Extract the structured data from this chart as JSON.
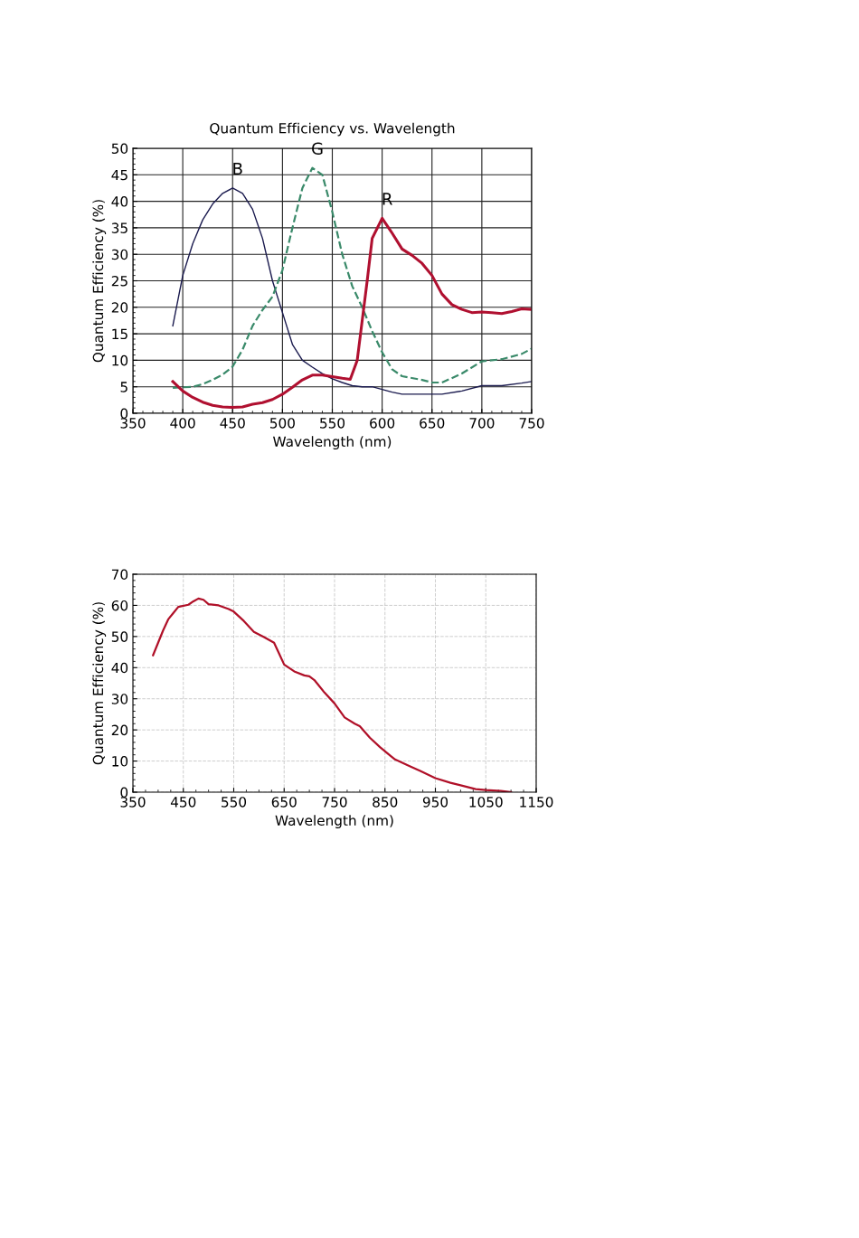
{
  "chart_data": [
    {
      "type": "line",
      "title": "Quantum Efficiency vs. Wavelength",
      "xlabel": "Wavelength (nm)",
      "ylabel": "Quantum Efficiency (%)",
      "xlim": [
        350,
        750
      ],
      "xticks": [
        350,
        400,
        450,
        500,
        550,
        600,
        650,
        700,
        750
      ],
      "ylim": [
        0,
        50
      ],
      "yticks": [
        0,
        5,
        10,
        15,
        20,
        25,
        30,
        35,
        40,
        45,
        50
      ],
      "grid": true,
      "legend": false,
      "series": [
        {
          "name": "B",
          "color": "#1a1a4e",
          "line_style": "solid",
          "x": [
            390,
            400,
            410,
            420,
            430,
            440,
            450,
            460,
            470,
            480,
            490,
            500,
            510,
            520,
            530,
            540,
            550,
            560,
            570,
            580,
            590,
            600,
            610,
            620,
            640,
            660,
            680,
            700,
            720,
            740,
            750
          ],
          "values": [
            16.5,
            26,
            32,
            36.5,
            39.5,
            41.5,
            42.5,
            41.5,
            38.5,
            33,
            25,
            19,
            13,
            10,
            8.7,
            7.5,
            6.5,
            5.8,
            5.2,
            5,
            5,
            4.5,
            4,
            3.6,
            3.6,
            3.6,
            4.2,
            5.2,
            5.2,
            5.7,
            6
          ]
        },
        {
          "name": "G",
          "color": "#3a8a6a",
          "line_style": "dashed",
          "x": [
            390,
            410,
            420,
            430,
            440,
            450,
            460,
            470,
            480,
            490,
            500,
            510,
            520,
            530,
            540,
            550,
            560,
            570,
            580,
            590,
            600,
            610,
            620,
            640,
            650,
            660,
            680,
            700,
            720,
            740,
            750
          ],
          "values": [
            4.8,
            5,
            5.5,
            6.3,
            7.3,
            8.8,
            12,
            16.5,
            19.5,
            22,
            27,
            35,
            42.5,
            46.3,
            45,
            38,
            30,
            24,
            20,
            15.5,
            11.5,
            8.3,
            7,
            6.3,
            5.8,
            5.8,
            7.5,
            9.8,
            10.2,
            11.2,
            12.2
          ]
        },
        {
          "name": "R",
          "color": "#b01030",
          "line_style": "solid",
          "x": [
            390,
            400,
            410,
            420,
            430,
            440,
            450,
            460,
            470,
            480,
            490,
            500,
            510,
            520,
            530,
            540,
            550,
            560,
            568,
            575,
            585,
            590,
            600,
            610,
            620,
            630,
            640,
            650,
            660,
            670,
            680,
            690,
            700,
            710,
            720,
            730,
            740,
            750
          ],
          "values": [
            6,
            4.2,
            3,
            2.1,
            1.5,
            1.2,
            1.1,
            1.2,
            1.7,
            2,
            2.6,
            3.6,
            4.9,
            6.3,
            7.2,
            7.2,
            6.9,
            6.6,
            6.4,
            10,
            25,
            33,
            36.8,
            34,
            31,
            29.8,
            28.3,
            26,
            22.5,
            20.5,
            19.6,
            19,
            19.1,
            19,
            18.8,
            19.2,
            19.7,
            19.6
          ]
        }
      ]
    },
    {
      "type": "line",
      "xlabel": "Wavelength (nm)",
      "ylabel": "Quantum Efficiency (%)",
      "xlim": [
        350,
        1150
      ],
      "xticks": [
        350,
        450,
        550,
        650,
        750,
        850,
        950,
        1050,
        1150
      ],
      "ylim": [
        0,
        70
      ],
      "yticks": [
        0,
        10,
        20,
        30,
        40,
        50,
        60,
        70
      ],
      "grid": true,
      "legend": false,
      "series": [
        {
          "color": "#b01028",
          "line_style": "solid",
          "x": [
            390,
            400,
            410,
            420,
            430,
            440,
            460,
            470,
            480,
            490,
            500,
            520,
            540,
            550,
            570,
            590,
            610,
            630,
            640,
            650,
            670,
            690,
            700,
            710,
            730,
            750,
            770,
            790,
            800,
            820,
            840,
            860,
            870,
            900,
            920,
            950,
            980,
            1000,
            1030,
            1050,
            1080,
            1100
          ],
          "values": [
            44,
            48,
            52,
            55.5,
            57.5,
            59.5,
            60.2,
            61.3,
            62.2,
            61.8,
            60.4,
            60,
            58.8,
            58,
            55,
            51.5,
            49.8,
            48,
            44.5,
            41,
            38.8,
            37.5,
            37.2,
            36,
            32,
            28.5,
            24,
            22,
            21.2,
            17.5,
            14.5,
            11.8,
            10.5,
            8.3,
            6.8,
            4.5,
            3,
            2.2,
            1,
            0.7,
            0.4,
            0
          ]
        }
      ]
    }
  ]
}
